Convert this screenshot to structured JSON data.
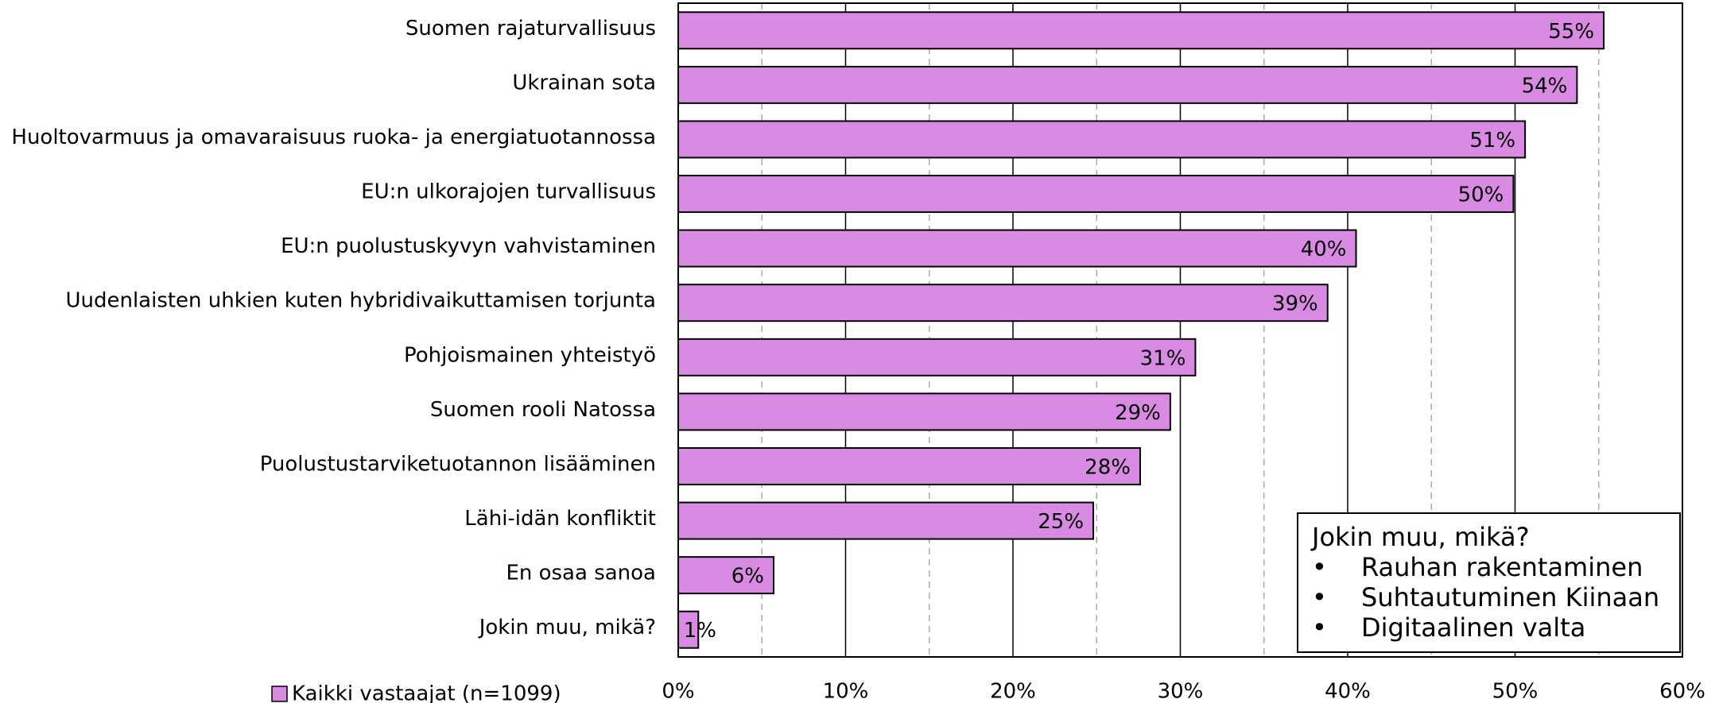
{
  "chart_data": {
    "type": "barh",
    "categories": [
      "Suomen rajaturvallisuus",
      "Ukrainan sota",
      "Huoltovarmuus ja omavaraisuus ruoka- ja energiatuotannossa",
      "EU:n ulkorajojen turvallisuus",
      "EU:n puolustuskyvyn vahvistaminen",
      "Uudenlaisten uhkien kuten hybridivaikuttamisen torjunta",
      "Pohjoismainen yhteistyö",
      "Suomen rooli Natossa",
      "Puolustustarviketuotannon lisääminen",
      "Lähi-idän konfliktit",
      "En osaa sanoa",
      "Jokin muu, mikä?"
    ],
    "series": [
      {
        "name": "Kaikki vastaajat (n=1099)",
        "color": "#d98ae3",
        "values": [
          55.3,
          53.7,
          50.6,
          49.9,
          40.5,
          38.8,
          30.9,
          29.4,
          27.6,
          24.8,
          5.7,
          1.2
        ],
        "value_labels": [
          "55%",
          "54%",
          "51%",
          "50%",
          "40%",
          "39%",
          "31%",
          "29%",
          "28%",
          "25%",
          "6%",
          "1%"
        ]
      }
    ],
    "xlim": [
      0,
      60
    ],
    "xticks": [
      {
        "value": 0,
        "label": "0%"
      },
      {
        "value": 10,
        "label": "10%"
      },
      {
        "value": 20,
        "label": "20%"
      },
      {
        "value": 30,
        "label": "30%"
      },
      {
        "value": 40,
        "label": "40%"
      },
      {
        "value": 50,
        "label": "50%"
      },
      {
        "value": 60,
        "label": "60%"
      }
    ],
    "minor_xticks": [
      5,
      15,
      25,
      35,
      45,
      55
    ],
    "grid": true,
    "legend": "bottom-left",
    "annotation": {
      "title": "Jokin muu, mikä?",
      "items": [
        "Rauhan rakentaminen",
        "Suhtautuminen Kiinaan",
        "Digitaalinen valta"
      ]
    }
  }
}
